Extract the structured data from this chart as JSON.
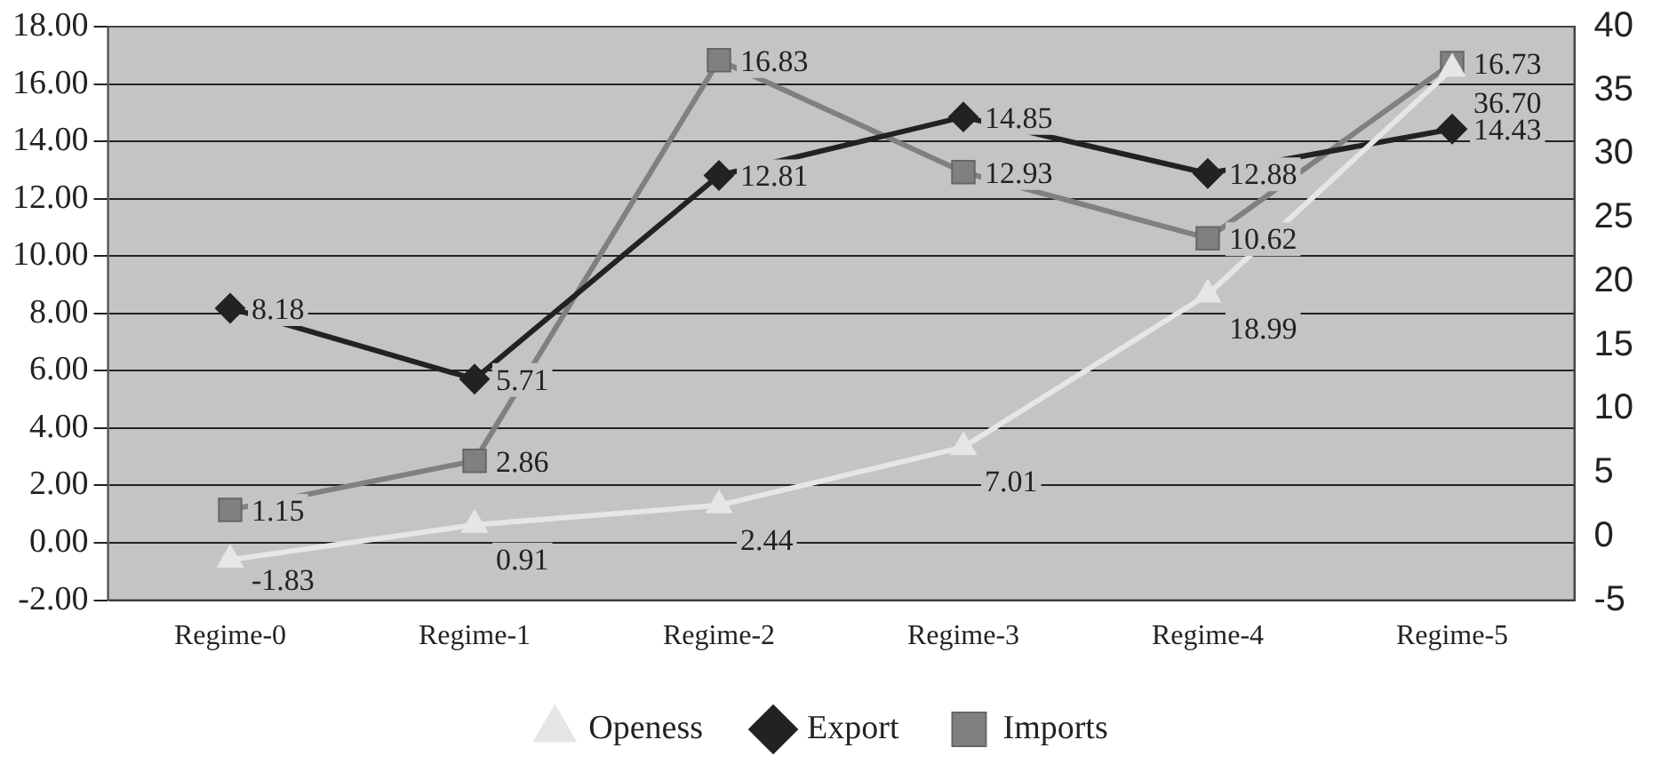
{
  "chart_data": {
    "type": "line",
    "categories": [
      "Regime-0",
      "Regime-1",
      "Regime-2",
      "Regime-3",
      "Regime-4",
      "Regime-5"
    ],
    "series": [
      {
        "name": "Openess",
        "color": "#e6e6e6",
        "marker": "triangle",
        "axis": "y2",
        "values": [
          -1.83,
          0.91,
          2.44,
          7.01,
          18.99,
          36.7
        ],
        "value_labels": [
          "-1.83",
          "0.91",
          "2.44",
          "7.01",
          "18.99",
          "36.70"
        ]
      },
      {
        "name": "Export",
        "color": "#222222",
        "marker": "diamond",
        "values": [
          8.18,
          5.71,
          12.81,
          14.85,
          12.88,
          14.43
        ],
        "value_labels": [
          "8.18",
          "5.71",
          "12.81",
          "14.85",
          "12.88",
          "14.43"
        ]
      },
      {
        "name": "Imports",
        "color": "#808080",
        "marker": "square",
        "values": [
          1.15,
          2.86,
          16.83,
          12.93,
          10.62,
          16.73
        ],
        "value_labels": [
          "1.15",
          "2.86",
          "16.83",
          "12.93",
          "10.62",
          "16.73"
        ]
      }
    ],
    "ylim": [
      -2,
      18
    ],
    "yticks": [
      {
        "value": -2,
        "label": "-2.00"
      },
      {
        "value": 0,
        "label": "0.00"
      },
      {
        "value": 2,
        "label": "2.00"
      },
      {
        "value": 4,
        "label": "4.00"
      },
      {
        "value": 6,
        "label": "6.00"
      },
      {
        "value": 8,
        "label": "8.00"
      },
      {
        "value": 10,
        "label": "10.00"
      },
      {
        "value": 12,
        "label": "12.00"
      },
      {
        "value": 14,
        "label": "14.00"
      },
      {
        "value": 16,
        "label": "16.00"
      },
      {
        "value": 18,
        "label": "18.00"
      }
    ],
    "y2lim": [
      -5,
      40
    ],
    "y2ticks": [
      -5,
      0,
      5,
      10,
      15,
      20,
      25,
      30,
      35,
      40
    ],
    "grid": "y",
    "legend": "bottom",
    "line_style": "solid"
  }
}
